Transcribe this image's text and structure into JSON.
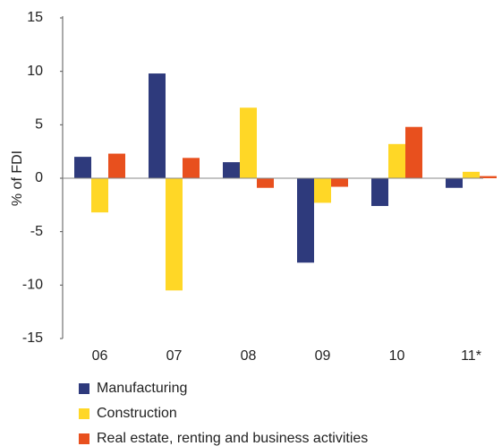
{
  "chart_data": {
    "type": "bar",
    "y_label": "% of FDI",
    "categories": [
      "06",
      "07",
      "08",
      "09",
      "10",
      "11*"
    ],
    "series": [
      {
        "name": "Manufacturing",
        "color": "#2e3a7c",
        "values": [
          2.0,
          9.8,
          1.5,
          -7.9,
          -2.6,
          -0.9
        ]
      },
      {
        "name": "Construction",
        "color": "#ffd726",
        "values": [
          -3.2,
          -10.5,
          6.6,
          -2.3,
          3.2,
          0.6
        ]
      },
      {
        "name": "Real estate, renting and business activities",
        "color": "#e8501e",
        "values": [
          2.3,
          1.9,
          -0.9,
          -0.8,
          4.8,
          0.2
        ]
      }
    ],
    "ylim": [
      -15,
      15
    ],
    "yticks": [
      -15,
      -10,
      -5,
      0,
      5,
      10,
      15
    ],
    "grid": false
  }
}
